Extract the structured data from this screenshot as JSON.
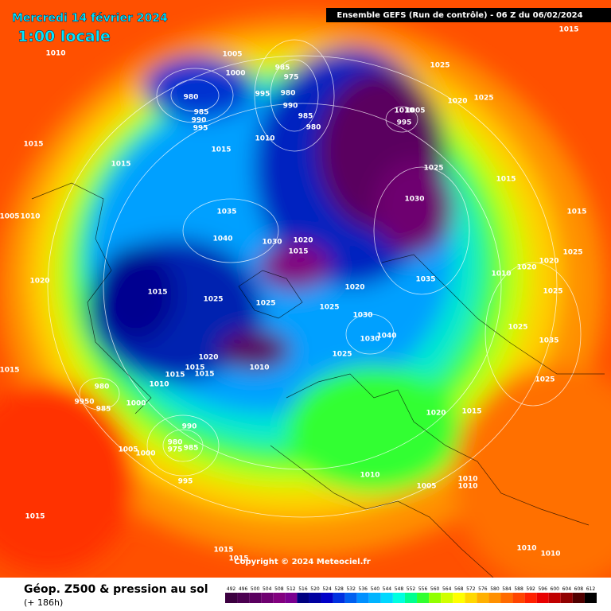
{
  "header": {
    "date": "Mercredi 14 février 2024",
    "local_time": "1:00 locale",
    "run_info": "Ensemble GEFS  (Run de contrôle)  -  06 Z du 06/02/2024"
  },
  "isobar_labels": [
    "1010",
    "1005",
    "1000",
    "985",
    "975",
    "980",
    "995",
    "990",
    "985",
    "980",
    "1010",
    "1015",
    "1015",
    "1015",
    "980",
    "985",
    "990",
    "995",
    "1025",
    "1020",
    "1025",
    "1010",
    "1005",
    "995",
    "1025",
    "1015",
    "1015",
    "1030",
    "1035",
    "1040",
    "1030",
    "1020",
    "1015",
    "1035",
    "1015",
    "1025",
    "1020",
    "1010",
    "1020",
    "1025",
    "1020",
    "1025",
    "1025",
    "1025",
    "1015",
    "1020",
    "1005",
    "1010",
    "1030",
    "1030",
    "1040",
    "1025",
    "1020",
    "1015",
    "1010",
    "1015",
    "1015",
    "1010",
    "980",
    "9950",
    "985",
    "1000",
    "1015",
    "990",
    "980",
    "975",
    "985",
    "1005",
    "1000",
    "995",
    "1025",
    "1035",
    "1025",
    "1020",
    "1015",
    "1010",
    "1005",
    "1010",
    "1010",
    "1015",
    "1015",
    "1015",
    "1010",
    "1010"
  ],
  "copyright": "Copyright © 2024 Meteociel.fr",
  "footer": {
    "title": "Géop. Z500 & pression au sol",
    "lead_time": "(+ 186h)"
  },
  "legend": {
    "values": [
      492,
      496,
      500,
      504,
      508,
      512,
      516,
      520,
      524,
      528,
      532,
      536,
      540,
      544,
      548,
      552,
      556,
      560,
      564,
      568,
      572,
      576,
      580,
      584,
      588,
      592,
      596,
      600,
      604,
      608,
      612
    ],
    "colors": [
      "#3c0040",
      "#4b0050",
      "#5a005f",
      "#6e0070",
      "#82007f",
      "#7a0090",
      "#000080",
      "#0000a0",
      "#0000c8",
      "#0030e0",
      "#0060f0",
      "#0090ff",
      "#00b4ff",
      "#00d8ff",
      "#00ffe0",
      "#00ff90",
      "#30ff30",
      "#90ff00",
      "#d0ff00",
      "#ffff00",
      "#ffd800",
      "#ffb000",
      "#ff9000",
      "#ff6a00",
      "#ff4500",
      "#ff2000",
      "#e80000",
      "#c00000",
      "#900000",
      "#500000",
      "#000000"
    ]
  }
}
